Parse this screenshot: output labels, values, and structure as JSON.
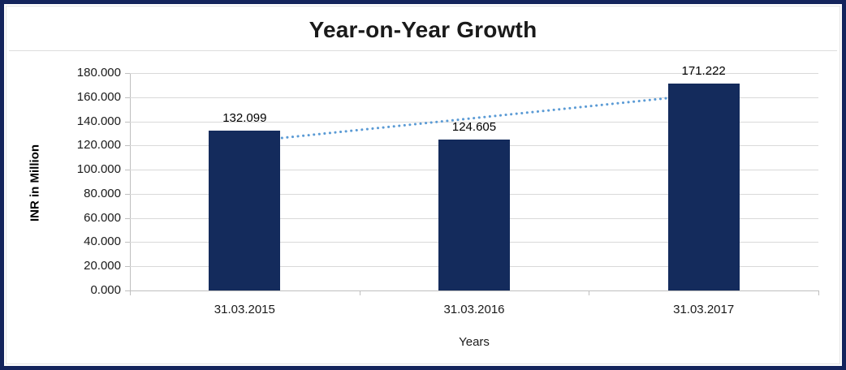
{
  "chart_data": {
    "type": "bar",
    "title": "Year-on-Year Growth",
    "categories": [
      "31.03.2015",
      "31.03.2016",
      "31.03.2017"
    ],
    "values": [
      132.099,
      124.605,
      171.222
    ],
    "value_labels": [
      "132.099",
      "124.605",
      "171.222"
    ],
    "xlabel": "Years",
    "ylabel": "INR in Million",
    "ylim": [
      0,
      180
    ],
    "ytick_step": 20,
    "ytick_decimals": 3,
    "grid": true,
    "legend": false,
    "bar_color": "#142B5C",
    "frame_color": "#14245C",
    "gridline_color": "#d9d9d9",
    "trendline": {
      "style": "dotted",
      "color": "#5B9BD5",
      "start_value": 123.1,
      "end_value": 162.3
    }
  }
}
